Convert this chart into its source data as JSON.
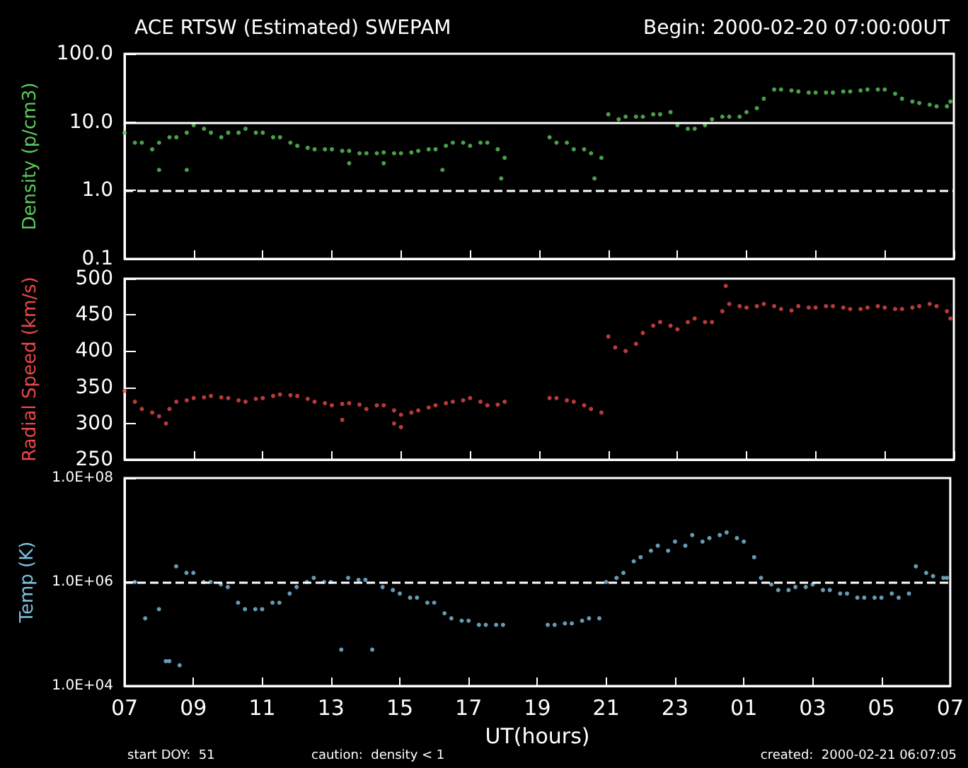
{
  "chart_data": [
    {
      "type": "scatter",
      "title": "ACE RTSW (Estimated) SWEPAM",
      "subtitle": "Begin: 2000-02-20 07:00:00UT",
      "ylabel": "Density (p/cm3)",
      "log": "y",
      "grid": false,
      "marker": "circle",
      "tick_labels": "y",
      "xlim": [
        "2000-02-20T07:00",
        "2000-02-21T07:00"
      ],
      "xticks": [
        {
          "value": "2000-02-20T07:00",
          "label": null
        },
        {
          "value": "2000-02-20T09:00",
          "label": null
        },
        {
          "value": "2000-02-20T11:00",
          "label": null
        },
        {
          "value": "2000-02-20T13:00",
          "label": null
        },
        {
          "value": "2000-02-20T15:00",
          "label": null
        },
        {
          "value": "2000-02-20T17:00",
          "label": null
        },
        {
          "value": "2000-02-20T19:00",
          "label": null
        },
        {
          "value": "2000-02-20T21:00",
          "label": null
        },
        {
          "value": "2000-02-20T23:00",
          "label": null
        },
        {
          "value": "2000-02-21T01:00",
          "label": null
        },
        {
          "value": "2000-02-21T03:00",
          "label": null
        },
        {
          "value": "2000-02-21T05:00",
          "label": null
        },
        {
          "value": "2000-02-21T07:00",
          "label": null
        }
      ],
      "ylim": [
        0.1,
        100
      ],
      "yticks": [
        0.1,
        {
          "value": 1,
          "label": "1.0"
        },
        {
          "value": 10,
          "label": "10.0"
        },
        {
          "value": 100,
          "label": "100.0"
        }
      ],
      "ref_lines": [
        {
          "axis": "y",
          "value": 10,
          "color": "#ffffff",
          "line_style": "solid"
        },
        {
          "axis": "y",
          "value": 1,
          "color": "#ffffff",
          "line_style": "dashed"
        }
      ],
      "series": [
        {
          "color": "#5cc85c",
          "x": [
            "2000-02-20T07:00",
            "2000-02-20T07:18",
            "2000-02-20T07:30",
            "2000-02-20T07:48",
            "2000-02-20T08:00",
            "2000-02-20T08:18",
            "2000-02-20T08:30",
            "2000-02-20T08:48",
            "2000-02-20T09:00",
            "2000-02-20T09:18",
            "2000-02-20T09:30",
            "2000-02-20T09:48",
            "2000-02-20T10:00",
            "2000-02-20T10:18",
            "2000-02-20T10:30",
            "2000-02-20T10:48",
            "2000-02-20T11:00",
            "2000-02-20T11:18",
            "2000-02-20T11:30",
            "2000-02-20T11:48",
            "2000-02-20T12:00",
            "2000-02-20T12:18",
            "2000-02-20T12:30",
            "2000-02-20T12:48",
            "2000-02-20T13:00",
            "2000-02-20T13:18",
            "2000-02-20T13:30",
            "2000-02-20T13:48",
            "2000-02-20T14:00",
            "2000-02-20T14:18",
            "2000-02-20T14:30",
            "2000-02-20T14:48",
            "2000-02-20T15:00",
            "2000-02-20T15:18",
            "2000-02-20T15:30",
            "2000-02-20T15:48",
            "2000-02-20T16:00",
            "2000-02-20T16:18",
            "2000-02-20T16:30",
            "2000-02-20T16:48",
            "2000-02-20T17:00",
            "2000-02-20T17:18",
            "2000-02-20T17:30",
            "2000-02-20T17:48",
            "2000-02-20T18:00",
            "2000-02-20T19:18",
            "2000-02-20T19:30",
            "2000-02-20T19:48",
            "2000-02-20T20:00",
            "2000-02-20T20:18",
            "2000-02-20T20:30",
            "2000-02-20T20:48",
            "2000-02-20T21:00",
            "2000-02-20T21:18",
            "2000-02-20T21:30",
            "2000-02-20T21:48",
            "2000-02-20T22:00",
            "2000-02-20T22:18",
            "2000-02-20T22:30",
            "2000-02-20T22:48",
            "2000-02-20T23:00",
            "2000-02-20T23:18",
            "2000-02-20T23:30",
            "2000-02-20T23:48",
            "2000-02-21T00:00",
            "2000-02-21T00:18",
            "2000-02-21T00:30",
            "2000-02-21T00:48",
            "2000-02-21T01:00",
            "2000-02-21T01:18",
            "2000-02-21T01:30",
            "2000-02-21T01:48",
            "2000-02-21T02:00",
            "2000-02-21T02:18",
            "2000-02-21T02:30",
            "2000-02-21T02:48",
            "2000-02-21T03:00",
            "2000-02-21T03:18",
            "2000-02-21T03:30",
            "2000-02-21T03:48",
            "2000-02-21T04:00",
            "2000-02-21T04:18",
            "2000-02-21T04:30",
            "2000-02-21T04:48",
            "2000-02-21T05:00",
            "2000-02-21T05:18",
            "2000-02-21T05:30",
            "2000-02-21T05:48",
            "2000-02-21T06:00",
            "2000-02-21T06:18",
            "2000-02-21T06:30",
            "2000-02-21T06:48",
            "2000-02-21T06:54",
            "2000-02-20T08:00",
            "2000-02-20T08:48",
            "2000-02-20T13:30",
            "2000-02-20T14:30",
            "2000-02-20T16:12",
            "2000-02-20T17:54",
            "2000-02-20T20:36"
          ],
          "values": [
            7,
            5,
            5,
            4,
            5,
            6,
            6,
            7,
            9,
            8,
            7,
            6,
            7,
            7,
            8,
            7,
            7,
            6,
            6,
            5,
            4.5,
            4.2,
            4,
            4,
            4,
            3.8,
            3.8,
            3.5,
            3.5,
            3.5,
            3.6,
            3.5,
            3.5,
            3.6,
            3.8,
            4,
            4,
            4.5,
            5,
            5,
            4.5,
            5,
            5,
            4,
            3,
            6,
            5,
            5,
            4,
            4,
            3.5,
            3,
            13,
            11,
            12,
            12,
            12,
            13,
            13,
            14,
            9,
            8,
            8,
            9,
            11,
            12,
            12,
            12,
            14,
            16,
            22,
            30,
            30,
            29,
            28,
            27,
            27,
            27,
            27,
            28,
            28,
            29,
            30,
            30,
            30,
            26,
            22,
            20,
            19,
            18,
            17,
            17,
            20,
            2,
            2,
            2.5,
            2.5,
            2,
            1.5,
            1.5
          ]
        }
      ]
    },
    {
      "type": "scatter",
      "ylabel": "Radial Speed (km/s)",
      "grid": false,
      "marker": "circle",
      "tick_labels": "y",
      "xlim": [
        "2000-02-20T07:00",
        "2000-02-21T07:00"
      ],
      "xticks": [
        {
          "value": "2000-02-20T07:00",
          "label": null
        },
        {
          "value": "2000-02-20T09:00",
          "label": null
        },
        {
          "value": "2000-02-20T11:00",
          "label": null
        },
        {
          "value": "2000-02-20T13:00",
          "label": null
        },
        {
          "value": "2000-02-20T15:00",
          "label": null
        },
        {
          "value": "2000-02-20T17:00",
          "label": null
        },
        {
          "value": "2000-02-20T19:00",
          "label": null
        },
        {
          "value": "2000-02-20T21:00",
          "label": null
        },
        {
          "value": "2000-02-20T23:00",
          "label": null
        },
        {
          "value": "2000-02-21T01:00",
          "label": null
        },
        {
          "value": "2000-02-21T03:00",
          "label": null
        },
        {
          "value": "2000-02-21T05:00",
          "label": null
        },
        {
          "value": "2000-02-21T07:00",
          "label": null
        }
      ],
      "ylim": [
        250,
        500
      ],
      "yticks": [
        250,
        300,
        350,
        400,
        450,
        500
      ],
      "series": [
        {
          "color": "#e84848",
          "x": [
            "2000-02-20T07:00",
            "2000-02-20T07:18",
            "2000-02-20T07:30",
            "2000-02-20T07:48",
            "2000-02-20T08:00",
            "2000-02-20T08:18",
            "2000-02-20T08:30",
            "2000-02-20T08:48",
            "2000-02-20T09:00",
            "2000-02-20T09:18",
            "2000-02-20T09:30",
            "2000-02-20T09:48",
            "2000-02-20T10:00",
            "2000-02-20T10:18",
            "2000-02-20T10:30",
            "2000-02-20T10:48",
            "2000-02-20T11:00",
            "2000-02-20T11:18",
            "2000-02-20T11:30",
            "2000-02-20T11:48",
            "2000-02-20T12:00",
            "2000-02-20T12:18",
            "2000-02-20T12:30",
            "2000-02-20T12:48",
            "2000-02-20T13:00",
            "2000-02-20T13:18",
            "2000-02-20T13:30",
            "2000-02-20T13:48",
            "2000-02-20T14:00",
            "2000-02-20T14:18",
            "2000-02-20T14:30",
            "2000-02-20T14:48",
            "2000-02-20T15:00",
            "2000-02-20T15:18",
            "2000-02-20T15:30",
            "2000-02-20T15:48",
            "2000-02-20T16:00",
            "2000-02-20T16:18",
            "2000-02-20T16:30",
            "2000-02-20T16:48",
            "2000-02-20T17:00",
            "2000-02-20T17:18",
            "2000-02-20T17:30",
            "2000-02-20T17:48",
            "2000-02-20T18:00",
            "2000-02-20T19:18",
            "2000-02-20T19:30",
            "2000-02-20T19:48",
            "2000-02-20T20:00",
            "2000-02-20T20:18",
            "2000-02-20T20:30",
            "2000-02-20T20:48",
            "2000-02-20T21:00",
            "2000-02-20T21:12",
            "2000-02-20T21:30",
            "2000-02-20T21:48",
            "2000-02-20T22:00",
            "2000-02-20T22:18",
            "2000-02-20T22:30",
            "2000-02-20T22:48",
            "2000-02-20T23:00",
            "2000-02-20T23:18",
            "2000-02-20T23:30",
            "2000-02-20T23:48",
            "2000-02-21T00:00",
            "2000-02-21T00:18",
            "2000-02-21T00:24",
            "2000-02-21T00:30",
            "2000-02-21T00:48",
            "2000-02-21T01:00",
            "2000-02-21T01:18",
            "2000-02-21T01:30",
            "2000-02-21T01:48",
            "2000-02-21T02:00",
            "2000-02-21T02:18",
            "2000-02-21T02:30",
            "2000-02-21T02:48",
            "2000-02-21T03:00",
            "2000-02-21T03:18",
            "2000-02-21T03:30",
            "2000-02-21T03:48",
            "2000-02-21T04:00",
            "2000-02-21T04:18",
            "2000-02-21T04:30",
            "2000-02-21T04:48",
            "2000-02-21T05:00",
            "2000-02-21T05:18",
            "2000-02-21T05:30",
            "2000-02-21T05:48",
            "2000-02-21T06:00",
            "2000-02-21T06:18",
            "2000-02-21T06:30",
            "2000-02-21T06:48",
            "2000-02-21T06:54",
            "2000-02-20T08:12",
            "2000-02-20T14:48",
            "2000-02-20T15:00",
            "2000-02-20T13:18"
          ],
          "values": [
            345,
            330,
            320,
            315,
            310,
            320,
            330,
            332,
            335,
            336,
            338,
            336,
            335,
            332,
            330,
            334,
            335,
            338,
            340,
            339,
            338,
            334,
            330,
            328,
            325,
            327,
            328,
            326,
            320,
            325,
            325,
            318,
            312,
            315,
            318,
            322,
            325,
            328,
            330,
            332,
            335,
            330,
            325,
            326,
            330,
            335,
            335,
            332,
            330,
            325,
            320,
            315,
            420,
            405,
            400,
            410,
            425,
            435,
            440,
            435,
            430,
            440,
            445,
            440,
            440,
            455,
            490,
            465,
            462,
            460,
            462,
            465,
            462,
            458,
            456,
            462,
            460,
            460,
            462,
            462,
            460,
            458,
            458,
            460,
            462,
            460,
            458,
            458,
            460,
            462,
            465,
            462,
            455,
            445,
            300,
            300,
            295,
            305
          ]
        }
      ]
    },
    {
      "type": "scatter",
      "ylabel": "Temp (K)",
      "xlabel": "UT(hours)",
      "log": "y",
      "grid": false,
      "marker": "circle",
      "annotations": [
        "start DOY:  51",
        "caution:  density < 1",
        "created:  2000-02-21 06:07:05"
      ],
      "xlim": [
        "2000-02-20T07:00",
        "2000-02-21T07:00"
      ],
      "xticks": [
        {
          "value": "2000-02-20T07:00",
          "label": "07"
        },
        {
          "value": "2000-02-20T09:00",
          "label": "09"
        },
        {
          "value": "2000-02-20T11:00",
          "label": "11"
        },
        {
          "value": "2000-02-20T13:00",
          "label": "13"
        },
        {
          "value": "2000-02-20T15:00",
          "label": "15"
        },
        {
          "value": "2000-02-20T17:00",
          "label": "17"
        },
        {
          "value": "2000-02-20T19:00",
          "label": "19"
        },
        {
          "value": "2000-02-20T21:00",
          "label": "21"
        },
        {
          "value": "2000-02-20T23:00",
          "label": "23"
        },
        {
          "value": "2000-02-21T01:00",
          "label": "01"
        },
        {
          "value": "2000-02-21T03:00",
          "label": "03"
        },
        {
          "value": "2000-02-21T05:00",
          "label": "05"
        },
        {
          "value": "2000-02-21T07:00",
          "label": "07"
        }
      ],
      "ylim": [
        10000,
        100000000
      ],
      "yticks": [
        {
          "value": 10000,
          "label": "1.0E+04"
        },
        {
          "value": 1000000,
          "label": "1.0E+06"
        },
        {
          "value": 100000000,
          "label": "1.0E+08"
        }
      ],
      "ref_lines": [
        {
          "axis": "y",
          "value": 1000000,
          "color": "#ffffff",
          "line_style": "dashed"
        }
      ],
      "series": [
        {
          "color": "#80c0e0",
          "x": [
            "2000-02-20T07:18",
            "2000-02-20T07:36",
            "2000-02-20T08:00",
            "2000-02-20T08:12",
            "2000-02-20T08:30",
            "2000-02-20T08:48",
            "2000-02-20T09:00",
            "2000-02-20T09:18",
            "2000-02-20T09:30",
            "2000-02-20T09:48",
            "2000-02-20T10:00",
            "2000-02-20T10:18",
            "2000-02-20T10:30",
            "2000-02-20T10:48",
            "2000-02-20T11:00",
            "2000-02-20T11:18",
            "2000-02-20T11:30",
            "2000-02-20T11:48",
            "2000-02-20T12:00",
            "2000-02-20T12:18",
            "2000-02-20T12:30",
            "2000-02-20T12:48",
            "2000-02-20T13:00",
            "2000-02-20T13:18",
            "2000-02-20T13:30",
            "2000-02-20T13:48",
            "2000-02-20T14:00",
            "2000-02-20T14:12",
            "2000-02-20T14:30",
            "2000-02-20T14:48",
            "2000-02-20T15:00",
            "2000-02-20T15:18",
            "2000-02-20T15:30",
            "2000-02-20T15:48",
            "2000-02-20T16:00",
            "2000-02-20T16:18",
            "2000-02-20T16:30",
            "2000-02-20T16:48",
            "2000-02-20T17:00",
            "2000-02-20T17:18",
            "2000-02-20T17:30",
            "2000-02-20T17:48",
            "2000-02-20T18:00",
            "2000-02-20T19:18",
            "2000-02-20T19:30",
            "2000-02-20T19:48",
            "2000-02-20T20:00",
            "2000-02-20T20:18",
            "2000-02-20T20:30",
            "2000-02-20T20:48",
            "2000-02-20T21:00",
            "2000-02-20T21:18",
            "2000-02-20T21:30",
            "2000-02-20T21:48",
            "2000-02-20T22:00",
            "2000-02-20T22:18",
            "2000-02-20T22:30",
            "2000-02-20T22:48",
            "2000-02-20T23:00",
            "2000-02-20T23:18",
            "2000-02-20T23:30",
            "2000-02-20T23:48",
            "2000-02-21T00:00",
            "2000-02-21T00:18",
            "2000-02-21T00:30",
            "2000-02-21T00:48",
            "2000-02-21T01:00",
            "2000-02-21T01:18",
            "2000-02-21T01:30",
            "2000-02-21T01:48",
            "2000-02-21T02:00",
            "2000-02-21T02:18",
            "2000-02-21T02:30",
            "2000-02-21T02:48",
            "2000-02-21T03:00",
            "2000-02-21T03:18",
            "2000-02-21T03:30",
            "2000-02-21T03:48",
            "2000-02-21T04:00",
            "2000-02-21T04:18",
            "2000-02-21T04:30",
            "2000-02-21T04:48",
            "2000-02-21T05:00",
            "2000-02-21T05:18",
            "2000-02-21T05:30",
            "2000-02-21T05:48",
            "2000-02-21T06:00",
            "2000-02-21T06:18",
            "2000-02-21T06:30",
            "2000-02-21T06:48",
            "2000-02-21T06:54",
            "2000-02-20T08:18",
            "2000-02-20T08:36"
          ],
          "values": [
            1000000,
            200000,
            300000,
            30000,
            2000000,
            1500000,
            1500000,
            1000000,
            1000000,
            900000,
            800000,
            400000,
            300000,
            300000,
            300000,
            400000,
            400000,
            600000,
            800000,
            1000000,
            1200000,
            1000000,
            1000000,
            50000,
            1200000,
            1100000,
            1100000,
            50000,
            800000,
            700000,
            600000,
            500000,
            500000,
            400000,
            400000,
            250000,
            200000,
            180000,
            180000,
            150000,
            150000,
            150000,
            150000,
            150000,
            150000,
            160000,
            160000,
            180000,
            200000,
            200000,
            1000000,
            1200000,
            1500000,
            2500000,
            3000000,
            4000000,
            5000000,
            4000000,
            6000000,
            5000000,
            8000000,
            6000000,
            7000000,
            8000000,
            9000000,
            7000000,
            6000000,
            3000000,
            1200000,
            900000,
            700000,
            700000,
            800000,
            800000,
            900000,
            700000,
            700000,
            600000,
            600000,
            500000,
            500000,
            500000,
            500000,
            600000,
            500000,
            600000,
            2000000,
            1500000,
            1300000,
            1200000,
            1200000,
            30000,
            25000
          ]
        }
      ]
    }
  ]
}
